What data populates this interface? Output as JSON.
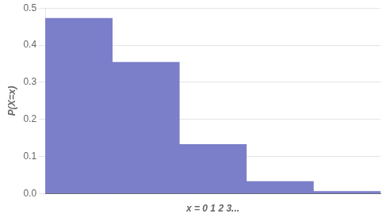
{
  "chart_data": {
    "type": "bar",
    "categories": [
      null,
      null,
      null,
      null,
      null
    ],
    "values": [
      0.4724,
      0.3543,
      0.1329,
      0.0332,
      0.0062
    ],
    "color": "#7b7fc9",
    "xlabel": "x = 0 1 2 3...",
    "ylabel": "P(X=x)",
    "ylim": [
      0,
      0.5
    ],
    "yticks": [
      {
        "value": 0,
        "label": "0.0"
      },
      0.1,
      0.2,
      0.3,
      0.4,
      0.5
    ],
    "grid": true,
    "tick_labels": "y"
  }
}
